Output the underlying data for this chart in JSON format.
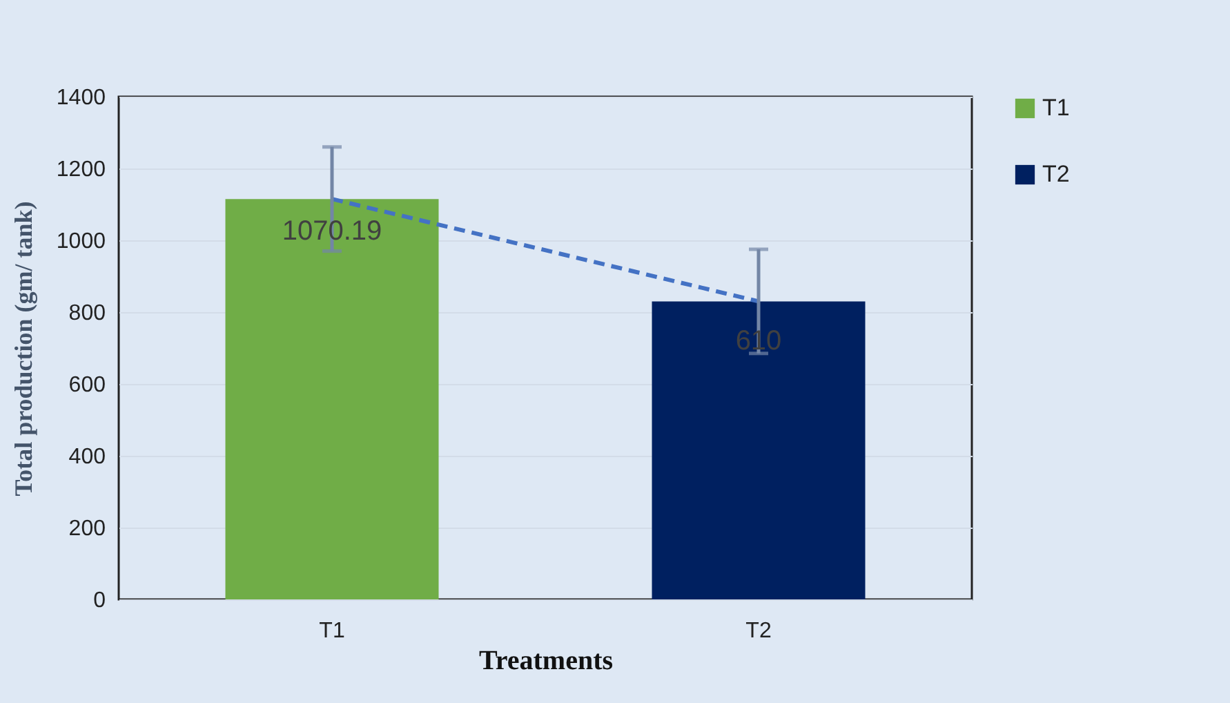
{
  "chart_data": {
    "type": "bar",
    "xlabel": "Treatments",
    "ylabel": "Total production (gm/ tank)",
    "categories": [
      "T1",
      "T2"
    ],
    "series": [
      {
        "name": "T1",
        "color": "#70ad47",
        "values": [
          1115,
          null
        ],
        "errors": [
          145,
          null
        ]
      },
      {
        "name": "T2",
        "color": "#002060",
        "values": [
          null,
          830
        ],
        "errors": [
          null,
          145
        ]
      },
      {
        "type": "line",
        "color": "#4472c4",
        "values": [
          1115,
          830
        ],
        "line_style": "dashed",
        "marker": "none"
      }
    ],
    "annotations": [
      {
        "text": "1070.19",
        "x": "T1",
        "y": 1025
      },
      {
        "text": "610",
        "x": "T2",
        "y": 720
      }
    ],
    "stacked": true,
    "ylim": [
      0,
      1400
    ],
    "yticks": [
      0,
      200,
      400,
      600,
      800,
      {
        "value": 1000,
        "label": "1000"
      },
      {
        "value": 1200,
        "label": "1200"
      },
      {
        "value": 1400,
        "label": "1400"
      }
    ],
    "grid": "y",
    "legend": "right"
  }
}
